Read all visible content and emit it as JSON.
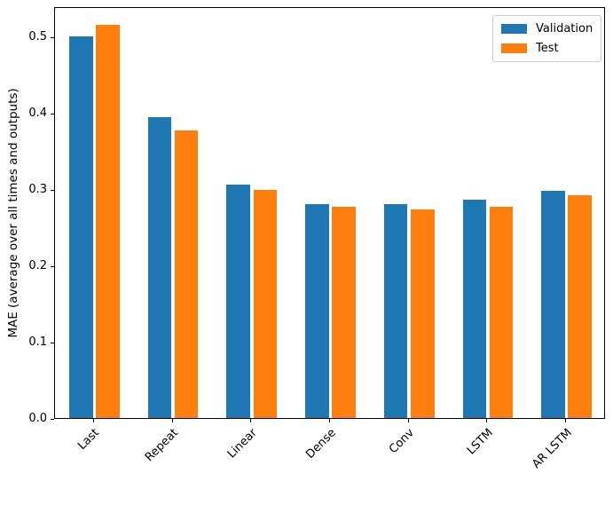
{
  "chart_data": {
    "type": "bar",
    "title": "",
    "xlabel": "",
    "ylabel": "MAE (average over all times and outputs)",
    "categories": [
      "Last",
      "Repeat",
      "Linear",
      "Dense",
      "Conv",
      "LSTM",
      "AR LSTM"
    ],
    "series": [
      {
        "name": "Validation",
        "color": "#1f77b4",
        "values": [
          0.501,
          0.395,
          0.306,
          0.281,
          0.28,
          0.286,
          0.298
        ]
      },
      {
        "name": "Test",
        "color": "#ff7f0e",
        "values": [
          0.515,
          0.377,
          0.299,
          0.277,
          0.274,
          0.277,
          0.292
        ]
      }
    ],
    "ylim": [
      0,
      0.54
    ],
    "yticks": [
      0.0,
      0.1,
      0.2,
      0.3,
      0.4,
      0.5
    ],
    "ytick_labels": [
      "0.0",
      "0.1",
      "0.2",
      "0.3",
      "0.4",
      "0.5"
    ],
    "x_tick_rotation": 45,
    "bar_width_units": 0.3,
    "bar_offset_units": 0.17,
    "grid": false,
    "legend_position": "upper right",
    "axis_color": "#000000",
    "background_color": "#ffffff"
  }
}
